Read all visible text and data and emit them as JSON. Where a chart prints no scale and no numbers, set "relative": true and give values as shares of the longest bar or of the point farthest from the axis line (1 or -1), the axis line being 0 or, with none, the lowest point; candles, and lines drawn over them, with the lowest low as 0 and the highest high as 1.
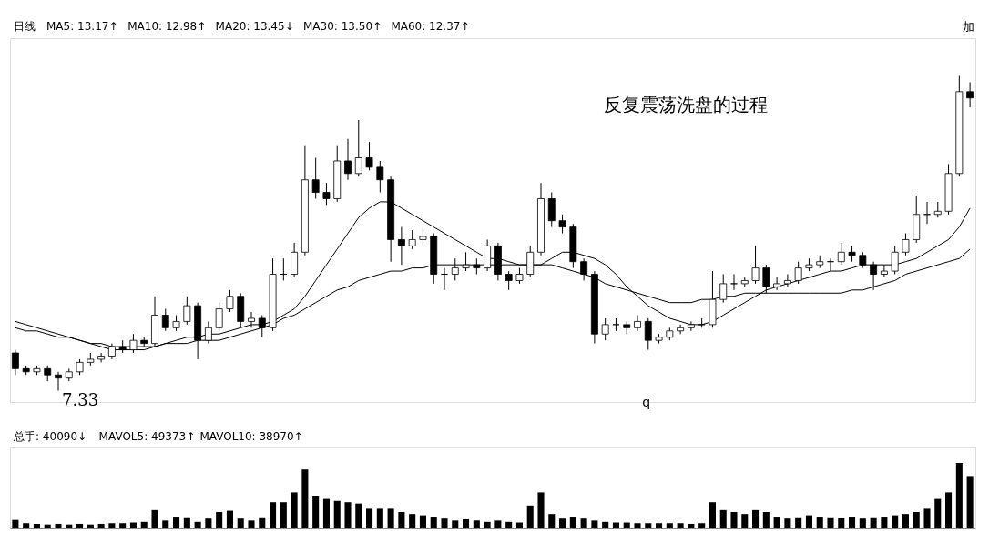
{
  "chart_data": [
    {
      "type": "candlestick",
      "relative": true,
      "title": "日线",
      "annotations": [
        "MA5: 13.17↑",
        "MA10: 12.98↑",
        "MA20: 13.45↓",
        "MA30: 13.50↑",
        "MA60: 12.37↑",
        "加",
        "7.33",
        "反复震荡洗盘的过程",
        "q"
      ],
      "categories": [
        null,
        null,
        null,
        null,
        null,
        null,
        null,
        null,
        null,
        null,
        null,
        null,
        null,
        null,
        null,
        null,
        null,
        null,
        null,
        null,
        null,
        null,
        null,
        null,
        null,
        null,
        null,
        null,
        null,
        null,
        null,
        null,
        null,
        null,
        null,
        null,
        null,
        null,
        null,
        null,
        null,
        null,
        null,
        null,
        null,
        null,
        null,
        null,
        null,
        null,
        null,
        null,
        null,
        null,
        null,
        null,
        null,
        null,
        null,
        null,
        null,
        null,
        null,
        null,
        null,
        null,
        null,
        null,
        null,
        null,
        null,
        null,
        null,
        null,
        null,
        null,
        null,
        null,
        null,
        null,
        null,
        null,
        null,
        null,
        null,
        null,
        null,
        null,
        null,
        null
      ],
      "ohlc": [
        [
          0.12,
          0.13,
          0.05,
          0.07
        ],
        [
          0.07,
          0.08,
          0.05,
          0.06
        ],
        [
          0.06,
          0.08,
          0.05,
          0.07
        ],
        [
          0.07,
          0.08,
          0.03,
          0.05
        ],
        [
          0.05,
          0.06,
          0,
          0.04
        ],
        [
          0.04,
          0.07,
          0.03,
          0.06
        ],
        [
          0.06,
          0.1,
          0.05,
          0.09
        ],
        [
          0.09,
          0.12,
          0.08,
          0.1
        ],
        [
          0.1,
          0.12,
          0.09,
          0.11
        ],
        [
          0.11,
          0.15,
          0.1,
          0.14
        ],
        [
          0.14,
          0.16,
          0.12,
          0.13
        ],
        [
          0.13,
          0.18,
          0.12,
          0.16
        ],
        [
          0.16,
          0.17,
          0.14,
          0.15
        ],
        [
          0.15,
          0.3,
          0.14,
          0.24
        ],
        [
          0.24,
          0.26,
          0.19,
          0.2
        ],
        [
          0.2,
          0.24,
          0.19,
          0.22
        ],
        [
          0.22,
          0.3,
          0.21,
          0.27
        ],
        [
          0.27,
          0.28,
          0.1,
          0.16
        ],
        [
          0.16,
          0.22,
          0.15,
          0.2
        ],
        [
          0.2,
          0.28,
          0.19,
          0.26
        ],
        [
          0.26,
          0.32,
          0.25,
          0.3
        ],
        [
          0.3,
          0.31,
          0.2,
          0.22
        ],
        [
          0.22,
          0.25,
          0.2,
          0.23
        ],
        [
          0.23,
          0.24,
          0.17,
          0.2
        ],
        [
          0.2,
          0.42,
          0.19,
          0.37
        ],
        [
          0.37,
          0.42,
          0.35,
          0.37
        ],
        [
          0.37,
          0.47,
          0.36,
          0.44
        ],
        [
          0.44,
          0.78,
          0.43,
          0.67
        ],
        [
          0.67,
          0.74,
          0.61,
          0.63
        ],
        [
          0.63,
          0.66,
          0.59,
          0.61
        ],
        [
          0.61,
          0.78,
          0.6,
          0.73
        ],
        [
          0.73,
          0.8,
          0.67,
          0.69
        ],
        [
          0.69,
          0.86,
          0.68,
          0.74
        ],
        [
          0.74,
          0.79,
          0.7,
          0.71
        ],
        [
          0.71,
          0.73,
          0.63,
          0.67
        ],
        [
          0.67,
          0.68,
          0.41,
          0.48
        ],
        [
          0.48,
          0.52,
          0.4,
          0.46
        ],
        [
          0.46,
          0.51,
          0.45,
          0.48
        ],
        [
          0.48,
          0.52,
          0.46,
          0.49
        ],
        [
          0.49,
          0.5,
          0.34,
          0.37
        ],
        [
          0.37,
          0.39,
          0.32,
          0.37
        ],
        [
          0.37,
          0.42,
          0.35,
          0.39
        ],
        [
          0.39,
          0.44,
          0.38,
          0.4
        ],
        [
          0.4,
          0.42,
          0.37,
          0.39
        ],
        [
          0.39,
          0.48,
          0.38,
          0.46
        ],
        [
          0.46,
          0.47,
          0.35,
          0.37
        ],
        [
          0.37,
          0.38,
          0.32,
          0.35
        ],
        [
          0.35,
          0.39,
          0.34,
          0.37
        ],
        [
          0.37,
          0.46,
          0.36,
          0.44
        ],
        [
          0.44,
          0.66,
          0.43,
          0.61
        ],
        [
          0.61,
          0.63,
          0.52,
          0.54
        ],
        [
          0.54,
          0.56,
          0.5,
          0.52
        ],
        [
          0.52,
          0.53,
          0.39,
          0.41
        ],
        [
          0.41,
          0.42,
          0.35,
          0.37
        ],
        [
          0.37,
          0.38,
          0.15,
          0.18
        ],
        [
          0.18,
          0.23,
          0.16,
          0.21
        ],
        [
          0.21,
          0.23,
          0.19,
          0.21
        ],
        [
          0.21,
          0.22,
          0.18,
          0.2
        ],
        [
          0.2,
          0.24,
          0.19,
          0.22
        ],
        [
          0.22,
          0.23,
          0.13,
          0.16
        ],
        [
          0.16,
          0.18,
          0.15,
          0.17
        ],
        [
          0.17,
          0.2,
          0.16,
          0.19
        ],
        [
          0.19,
          0.21,
          0.18,
          0.2
        ],
        [
          0.2,
          0.22,
          0.19,
          0.21
        ],
        [
          0.21,
          0.23,
          0.2,
          0.21
        ],
        [
          0.21,
          0.38,
          0.2,
          0.29
        ],
        [
          0.29,
          0.37,
          0.28,
          0.34
        ],
        [
          0.34,
          0.37,
          0.32,
          0.34
        ],
        [
          0.34,
          0.36,
          0.33,
          0.35
        ],
        [
          0.35,
          0.46,
          0.34,
          0.39
        ],
        [
          0.39,
          0.4,
          0.31,
          0.33
        ],
        [
          0.33,
          0.36,
          0.32,
          0.34
        ],
        [
          0.34,
          0.37,
          0.33,
          0.35
        ],
        [
          0.35,
          0.41,
          0.34,
          0.39
        ],
        [
          0.39,
          0.42,
          0.38,
          0.4
        ],
        [
          0.4,
          0.43,
          0.39,
          0.41
        ],
        [
          0.41,
          0.42,
          0.38,
          0.41
        ],
        [
          0.41,
          0.47,
          0.4,
          0.44
        ],
        [
          0.44,
          0.46,
          0.41,
          0.43
        ],
        [
          0.43,
          0.44,
          0.39,
          0.4
        ],
        [
          0.4,
          0.41,
          0.32,
          0.37
        ],
        [
          0.37,
          0.4,
          0.36,
          0.38
        ],
        [
          0.38,
          0.46,
          0.37,
          0.44
        ],
        [
          0.44,
          0.5,
          0.43,
          0.48
        ],
        [
          0.48,
          0.62,
          0.47,
          0.56
        ],
        [
          0.56,
          0.6,
          0.53,
          0.56
        ],
        [
          0.56,
          0.6,
          0.55,
          0.57
        ],
        [
          0.57,
          0.72,
          0.56,
          0.69
        ],
        [
          0.69,
          1,
          0.68,
          0.95
        ],
        [
          0.95,
          0.98,
          0.9,
          0.93
        ]
      ],
      "series": [
        {
          "type": "line",
          "color": "#000000",
          "values": [
            0.2,
            0.19,
            0.19,
            0.18,
            0.17,
            0.17,
            0.16,
            0.15,
            0.15,
            0.14,
            0.14,
            0.14,
            0.14,
            0.14,
            0.15,
            0.15,
            0.15,
            0.16,
            0.16,
            0.16,
            0.17,
            0.18,
            0.19,
            0.2,
            0.21,
            0.23,
            0.24,
            0.26,
            0.28,
            0.3,
            0.32,
            0.33,
            0.35,
            0.36,
            0.37,
            0.38,
            0.38,
            0.39,
            0.39,
            0.4,
            0.4,
            0.4,
            0.4,
            0.4,
            0.4,
            0.4,
            0.4,
            0.4,
            0.4,
            0.4,
            0.4,
            0.39,
            0.38,
            0.37,
            0.36,
            0.34,
            0.33,
            0.32,
            0.31,
            0.3,
            0.29,
            0.28,
            0.28,
            0.28,
            0.29,
            0.29,
            0.3,
            0.3,
            0.31,
            0.31,
            0.31,
            0.31,
            0.31,
            0.31,
            0.31,
            0.31,
            0.31,
            0.31,
            0.32,
            0.32,
            0.33,
            0.34,
            0.35,
            0.37,
            0.38,
            0.39,
            0.4,
            0.41,
            0.42,
            0.45
          ]
        },
        {
          "type": "line",
          "color": "#000000",
          "values": [
            0.22,
            0.21,
            0.2,
            0.19,
            0.18,
            0.17,
            0.16,
            0.15,
            0.14,
            0.13,
            0.13,
            0.13,
            0.13,
            0.14,
            0.15,
            0.16,
            0.17,
            0.17,
            0.18,
            0.18,
            0.19,
            0.2,
            0.21,
            0.21,
            0.22,
            0.24,
            0.26,
            0.3,
            0.35,
            0.4,
            0.45,
            0.5,
            0.55,
            0.58,
            0.6,
            0.6,
            0.58,
            0.56,
            0.54,
            0.52,
            0.5,
            0.48,
            0.46,
            0.44,
            0.42,
            0.42,
            0.41,
            0.4,
            0.4,
            0.4,
            0.42,
            0.44,
            0.44,
            0.43,
            0.42,
            0.4,
            0.37,
            0.33,
            0.3,
            0.27,
            0.25,
            0.23,
            0.22,
            0.21,
            0.21,
            0.22,
            0.24,
            0.26,
            0.28,
            0.3,
            0.32,
            0.33,
            0.34,
            0.35,
            0.36,
            0.37,
            0.38,
            0.38,
            0.39,
            0.4,
            0.4,
            0.4,
            0.4,
            0.41,
            0.42,
            0.44,
            0.46,
            0.48,
            0.52,
            0.58
          ]
        }
      ],
      "tick_labels": false
    },
    {
      "type": "bar",
      "relative": true,
      "title": "总手: 40090↓",
      "annotations": [
        "MAVOL5: 49373↑",
        "MAVOL10: 38970↑"
      ],
      "categories": [
        null,
        null,
        null,
        null,
        null,
        null,
        null,
        null,
        null,
        null,
        null,
        null,
        null,
        null,
        null,
        null,
        null,
        null,
        null,
        null,
        null,
        null,
        null,
        null,
        null,
        null,
        null,
        null,
        null,
        null,
        null,
        null,
        null,
        null,
        null,
        null,
        null,
        null,
        null,
        null,
        null,
        null,
        null,
        null,
        null,
        null,
        null,
        null,
        null,
        null,
        null,
        null,
        null,
        null,
        null,
        null,
        null,
        null,
        null,
        null,
        null,
        null,
        null,
        null,
        null,
        null,
        null,
        null,
        null,
        null,
        null,
        null,
        null,
        null,
        null,
        null,
        null,
        null,
        null,
        null,
        null,
        null,
        null,
        null,
        null,
        null,
        null,
        null,
        null,
        null
      ],
      "color": "#000000",
      "values": [
        0.13,
        0.08,
        0.07,
        0.06,
        0.07,
        0.06,
        0.07,
        0.06,
        0.07,
        0.08,
        0.08,
        0.09,
        0.1,
        0.28,
        0.12,
        0.18,
        0.17,
        0.1,
        0.15,
        0.25,
        0.27,
        0.15,
        0.12,
        0.17,
        0.4,
        0.4,
        0.55,
        0.9,
        0.5,
        0.45,
        0.42,
        0.4,
        0.38,
        0.3,
        0.3,
        0.3,
        0.25,
        0.22,
        0.2,
        0.18,
        0.15,
        0.12,
        0.14,
        0.12,
        0.1,
        0.12,
        0.1,
        0.09,
        0.35,
        0.55,
        0.22,
        0.15,
        0.18,
        0.15,
        0.12,
        0.1,
        0.09,
        0.09,
        0.08,
        0.08,
        0.08,
        0.08,
        0.08,
        0.07,
        0.08,
        0.4,
        0.28,
        0.25,
        0.22,
        0.28,
        0.25,
        0.18,
        0.15,
        0.17,
        0.2,
        0.18,
        0.17,
        0.16,
        0.18,
        0.15,
        0.17,
        0.18,
        0.2,
        0.22,
        0.25,
        0.3,
        0.45,
        0.55,
        1,
        0.8
      ],
      "tick_labels": false
    }
  ]
}
